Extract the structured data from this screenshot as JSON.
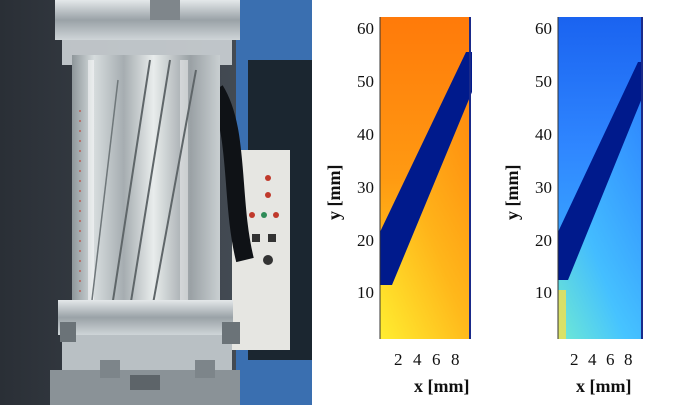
{
  "plots": [
    {
      "ylabel": "y [mm]",
      "xlabel": "x [mm]",
      "yticks": [
        "10",
        "20",
        "30",
        "40",
        "50",
        "60"
      ],
      "xticks": [
        "2",
        "4",
        "6",
        "8"
      ],
      "colors": {
        "bg": "#ff8c0a",
        "low": "#ffd21e",
        "band": "#001a8c"
      }
    },
    {
      "ylabel": "y [mm]",
      "xlabel": "x [mm]",
      "yticks": [
        "10",
        "20",
        "30",
        "40",
        "50",
        "60"
      ],
      "xticks": [
        "2",
        "4",
        "6",
        "8"
      ],
      "colors": {
        "bg": "#1e6cff",
        "low": "#5ad8ff",
        "band": "#001a8c"
      }
    }
  ]
}
